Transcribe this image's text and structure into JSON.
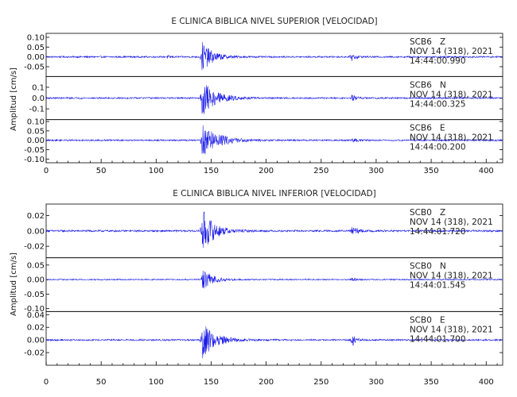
{
  "chart_data": [
    {
      "type": "line",
      "title": "E CLINICA BIBLICA NIVEL SUPERIOR [VELOCIDAD]",
      "ylabel": "Amplitud [cm/s]",
      "xlim": [
        0,
        415
      ],
      "xticks": [
        0,
        50,
        100,
        150,
        200,
        250,
        300,
        350,
        400
      ],
      "traces": [
        {
          "station": "SCB6",
          "component": "Z",
          "date": "NOV 14 (318), 2021",
          "time": "14:44:00.990",
          "ylim": [
            -0.1,
            0.12
          ],
          "yticks": [
            0.1,
            0.05,
            0.0,
            -0.05
          ],
          "ytick_labels": [
            "0.10",
            "0.05",
            "0.00",
            "-0.05"
          ],
          "noise": 0.004,
          "events": [
            {
              "t": 141.5,
              "amp": 0.08,
              "decay": 9
            },
            {
              "t": 277.5,
              "amp": 0.022,
              "decay": 3.5
            },
            {
              "t": 110,
              "amp": 0.006,
              "decay": 4
            }
          ]
        },
        {
          "station": "SCB6",
          "component": "N",
          "date": "NOV 14 (318), 2021",
          "time": "14:44:00.325",
          "ylim": [
            -0.2,
            0.2
          ],
          "yticks": [
            0.1,
            0.0,
            -0.1
          ],
          "ytick_labels": [
            "0.1",
            "0.0",
            "-0.1"
          ],
          "noise": 0.007,
          "events": [
            {
              "t": 141.5,
              "amp": 0.17,
              "decay": 12
            },
            {
              "t": 277.5,
              "amp": 0.03,
              "decay": 4
            }
          ]
        },
        {
          "station": "SCB6",
          "component": "E",
          "date": "NOV 14 (318), 2021",
          "time": "14:44:00.200",
          "ylim": [
            -0.12,
            0.11
          ],
          "yticks": [
            0.1,
            0.05,
            0.0,
            -0.05,
            -0.1
          ],
          "ytick_labels": [
            "0.10",
            "0.05",
            "0.00",
            "-0.05",
            "-0.10"
          ],
          "noise": 0.004,
          "events": [
            {
              "t": 141.5,
              "amp": 0.09,
              "decay": 14
            },
            {
              "t": 277.5,
              "amp": 0.02,
              "decay": 4
            }
          ]
        }
      ]
    },
    {
      "type": "line",
      "title": "E CLINICA BIBLICA NIVEL INFERIOR [VELOCIDAD]",
      "ylabel": "Amplitud [cm/s]",
      "xlim": [
        0,
        415
      ],
      "xticks": [
        0,
        50,
        100,
        150,
        200,
        250,
        300,
        350,
        400
      ],
      "traces": [
        {
          "station": "SCB0",
          "component": "Z",
          "date": "NOV 14 (318), 2021",
          "time": "14:44:01.720",
          "ylim": [
            -0.035,
            0.035
          ],
          "yticks": [
            0.02,
            0.0,
            -0.02
          ],
          "ytick_labels": [
            "0.02",
            "0.00",
            "-0.02"
          ],
          "noise": 0.0012,
          "events": [
            {
              "t": 141.5,
              "amp": 0.03,
              "decay": 10
            },
            {
              "t": 277.5,
              "amp": 0.008,
              "decay": 4
            }
          ]
        },
        {
          "station": "SCB0",
          "component": "N",
          "date": "NOV 14 (318), 2021",
          "time": "14:44:01.545",
          "ylim": [
            -0.11,
            0.075
          ],
          "yticks": [
            0.05,
            0.0,
            -0.05,
            -0.1
          ],
          "ytick_labels": [
            "0.05",
            "0.00",
            "-0.05",
            "-0.10"
          ],
          "noise": 0.002,
          "events": [
            {
              "t": 141.5,
              "amp": 0.04,
              "decay": 9
            },
            {
              "t": 277.5,
              "amp": 0.008,
              "decay": 4
            }
          ]
        },
        {
          "station": "SCB0",
          "component": "E",
          "date": "NOV 14 (318), 2021",
          "time": "14:44:01.700",
          "ylim": [
            -0.04,
            0.045
          ],
          "yticks": [
            0.04,
            0.02,
            0.0,
            -0.02
          ],
          "ytick_labels": [
            "0.04",
            "0.02",
            "0.00",
            "-0.02"
          ],
          "noise": 0.0013,
          "events": [
            {
              "t": 141.5,
              "amp": 0.032,
              "decay": 11
            },
            {
              "t": 277.5,
              "amp": 0.012,
              "decay": 3
            }
          ]
        }
      ]
    }
  ],
  "colors": {
    "trace": "#1414e6",
    "frame": "#000000",
    "text": "#222222"
  }
}
